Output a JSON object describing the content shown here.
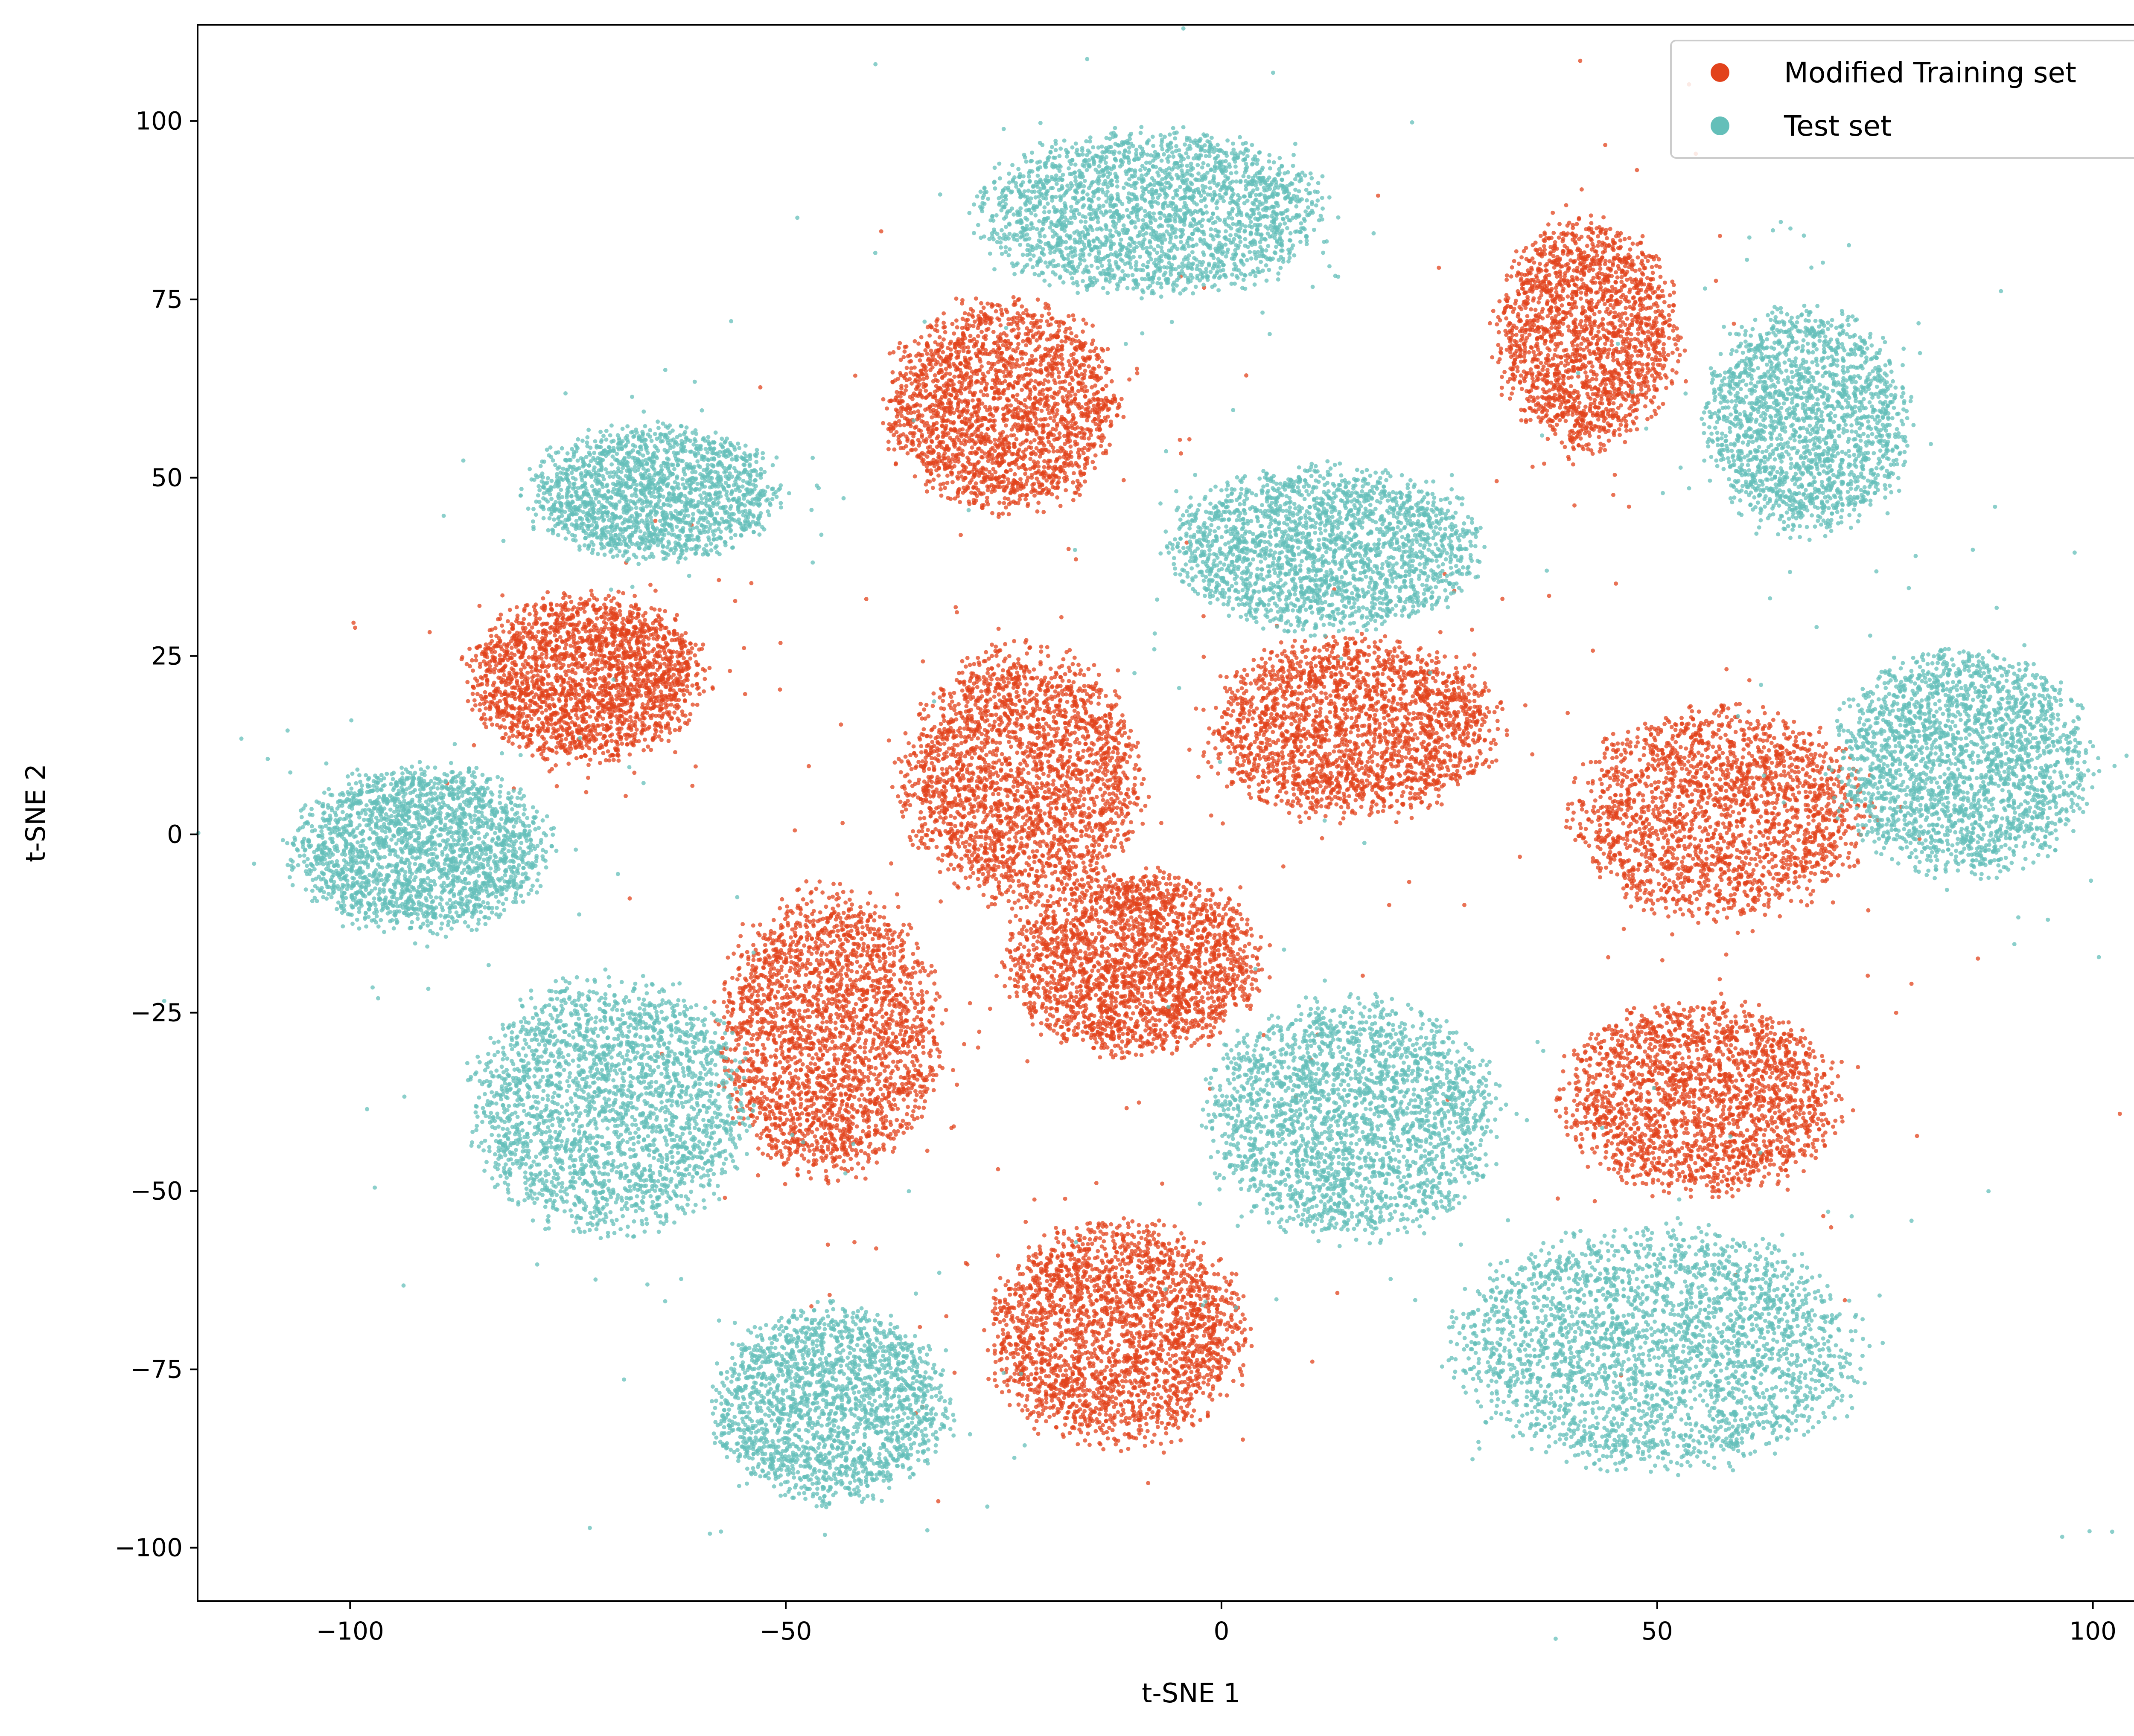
{
  "chart_data": {
    "type": "scatter",
    "title": "",
    "xlabel": "t-SNE 1",
    "ylabel": "t-SNE 2",
    "xlim": [
      -117.5,
      110.5
    ],
    "ylim": [
      -107.5,
      113.5
    ],
    "xticks": [
      -100,
      -50,
      0,
      50,
      100
    ],
    "yticks": [
      -100,
      -75,
      -50,
      -25,
      0,
      25,
      50,
      75,
      100
    ],
    "xtick_labels": [
      "−100",
      "−50",
      "0",
      "50",
      "100"
    ],
    "ytick_labels": [
      "−100",
      "−75",
      "−50",
      "−25",
      "0",
      "25",
      "50",
      "75",
      "100"
    ],
    "grid": false,
    "legend_position": "top-right",
    "series": [
      {
        "name": "Modified Training set",
        "color": "#E2431C",
        "clusters": [
          {
            "cx": -25,
            "cy": 60,
            "rx": 13,
            "ry": 14,
            "n": 2200
          },
          {
            "cx": -73,
            "cy": 22,
            "rx": 13,
            "ry": 11,
            "n": 2200
          },
          {
            "cx": -23,
            "cy": 8,
            "rx": 13,
            "ry": 17,
            "n": 2400
          },
          {
            "cx": 15,
            "cy": 15,
            "rx": 16,
            "ry": 12,
            "n": 2200
          },
          {
            "cx": 42,
            "cy": 70,
            "rx": 10,
            "ry": 15,
            "n": 1900
          },
          {
            "cx": 57,
            "cy": 3,
            "rx": 16,
            "ry": 14,
            "n": 2100
          },
          {
            "cx": -10,
            "cy": -18,
            "rx": 14,
            "ry": 12,
            "n": 2300
          },
          {
            "cx": -45,
            "cy": -28,
            "rx": 12,
            "ry": 19,
            "n": 2400
          },
          {
            "cx": -12,
            "cy": -70,
            "rx": 14,
            "ry": 15,
            "n": 2400
          },
          {
            "cx": 55,
            "cy": -37,
            "rx": 15,
            "ry": 13,
            "n": 2100
          }
        ]
      },
      {
        "name": "Test set",
        "color": "#64BFB9",
        "clusters": [
          {
            "cx": -8,
            "cy": 87,
            "rx": 19,
            "ry": 11,
            "n": 2300
          },
          {
            "cx": -65,
            "cy": 48,
            "rx": 14,
            "ry": 9,
            "n": 1800
          },
          {
            "cx": 12,
            "cy": 40,
            "rx": 17,
            "ry": 11,
            "n": 2200
          },
          {
            "cx": 67,
            "cy": 58,
            "rx": 11,
            "ry": 15,
            "n": 1900
          },
          {
            "cx": -92,
            "cy": -2,
            "rx": 14,
            "ry": 11,
            "n": 2200
          },
          {
            "cx": 85,
            "cy": 10,
            "rx": 14,
            "ry": 15,
            "n": 2300
          },
          {
            "cx": -70,
            "cy": -38,
            "rx": 15,
            "ry": 17,
            "n": 2400
          },
          {
            "cx": 15,
            "cy": -40,
            "rx": 16,
            "ry": 16,
            "n": 2400
          },
          {
            "cx": -45,
            "cy": -80,
            "rx": 13,
            "ry": 13,
            "n": 2000
          },
          {
            "cx": 50,
            "cy": -72,
            "rx": 22,
            "ry": 16,
            "n": 2800
          }
        ]
      }
    ]
  }
}
